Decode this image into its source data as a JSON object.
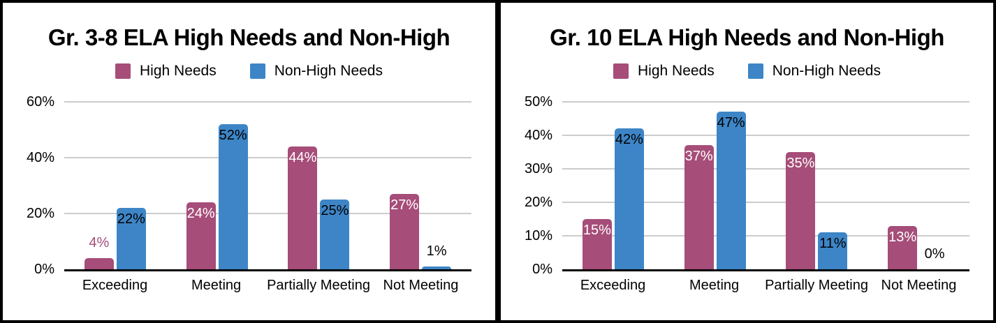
{
  "chart_data": [
    {
      "type": "bar",
      "title": "Gr. 3-8 ELA High Needs and Non-High",
      "xlabel": "",
      "ylabel": "",
      "grid": true,
      "legend_position": "top",
      "categories": [
        "Exceeding",
        "Meeting",
        "Partially Meeting",
        "Not Meeting"
      ],
      "series": [
        {
          "name": "High Needs",
          "color": "#A64D79",
          "label_color_inside": "#FFFFFF",
          "label_color_outside": "#A64D79",
          "values": [
            4,
            24,
            44,
            27
          ],
          "labels": [
            "4%",
            "24%",
            "44%",
            "27%"
          ]
        },
        {
          "name": "Non-High Needs",
          "color": "#3D85C6",
          "label_color_inside": "#000000",
          "label_color_outside": "#000000",
          "values": [
            22,
            52,
            25,
            1
          ],
          "labels": [
            "22%",
            "52%",
            "25%",
            "1%"
          ]
        }
      ],
      "y_axis": {
        "ticks": [
          "0%",
          "20%",
          "40%",
          "60%"
        ],
        "tick_values": [
          0,
          20,
          40,
          60
        ],
        "max": 60
      }
    },
    {
      "type": "bar",
      "title": "Gr. 10 ELA High Needs and Non-High",
      "xlabel": "",
      "ylabel": "",
      "grid": true,
      "legend_position": "top",
      "categories": [
        "Exceeding",
        "Meeting",
        "Partially Meeting",
        "Not Meeting"
      ],
      "series": [
        {
          "name": "High Needs",
          "color": "#A64D79",
          "label_color_inside": "#FFFFFF",
          "label_color_outside": "#A64D79",
          "values": [
            15,
            37,
            35,
            13
          ],
          "labels": [
            "15%",
            "37%",
            "35%",
            "13%"
          ]
        },
        {
          "name": "Non-High Needs",
          "color": "#3D85C6",
          "label_color_inside": "#000000",
          "label_color_outside": "#000000",
          "values": [
            42,
            47,
            11,
            0
          ],
          "labels": [
            "42%",
            "47%",
            "11%",
            "0%"
          ]
        }
      ],
      "y_axis": {
        "ticks": [
          "0%",
          "10%",
          "20%",
          "30%",
          "40%",
          "50%"
        ],
        "tick_values": [
          0,
          10,
          20,
          30,
          40,
          50
        ],
        "max": 50
      }
    }
  ],
  "colors": {
    "high_needs": "#A64D79",
    "non_high_needs": "#3D85C6",
    "gridline": "#CCCCCC",
    "axis": "#000000",
    "frame_border": "#000000"
  }
}
